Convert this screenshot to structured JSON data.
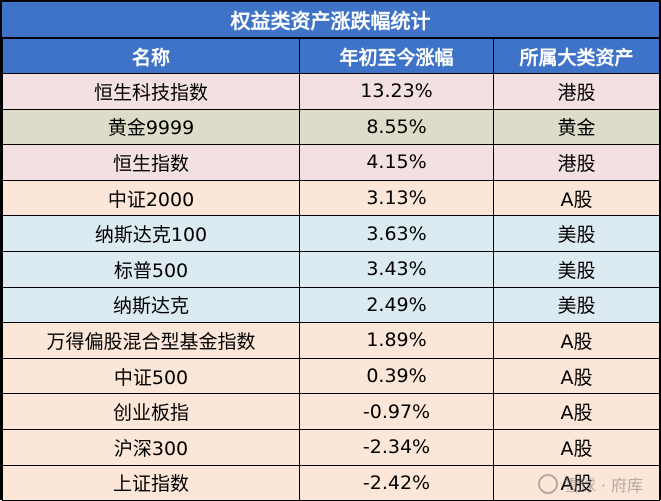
{
  "title": "权益类资产涨跌幅统计",
  "headers": [
    "名称",
    "年初至今涨幅",
    "所属大类资产"
  ],
  "colors": {
    "header_bg": "#3f73c8",
    "hk": "#f3e0e2",
    "gold": "#dcdcc8",
    "ashare": "#fbe6d8",
    "us": "#dcebf1"
  },
  "rows": [
    {
      "name": "恒生科技指数",
      "change": "13.23%",
      "category": "港股",
      "group": "hk"
    },
    {
      "name": "黄金9999",
      "change": "8.55%",
      "category": "黄金",
      "group": "gold"
    },
    {
      "name": "恒生指数",
      "change": "4.15%",
      "category": "港股",
      "group": "hk"
    },
    {
      "name": "中证2000",
      "change": "3.13%",
      "category": "A股",
      "group": "a"
    },
    {
      "name": "纳斯达克100",
      "change": "3.63%",
      "category": "美股",
      "group": "us"
    },
    {
      "name": "标普500",
      "change": "3.43%",
      "category": "美股",
      "group": "us"
    },
    {
      "name": "纳斯达克",
      "change": "2.49%",
      "category": "美股",
      "group": "us"
    },
    {
      "name": "万得偏股混合型基金指数",
      "change": "1.89%",
      "category": "A股",
      "group": "a"
    },
    {
      "name": "中证500",
      "change": "0.39%",
      "category": "A股",
      "group": "a"
    },
    {
      "name": "创业板指",
      "change": "-0.97%",
      "category": "A股",
      "group": "a"
    },
    {
      "name": "沪深300",
      "change": "-2.34%",
      "category": "A股",
      "group": "a"
    },
    {
      "name": "上证指数",
      "change": "-2.42%",
      "category": "A股",
      "group": "a"
    }
  ],
  "watermark": "雪球 · 府库"
}
